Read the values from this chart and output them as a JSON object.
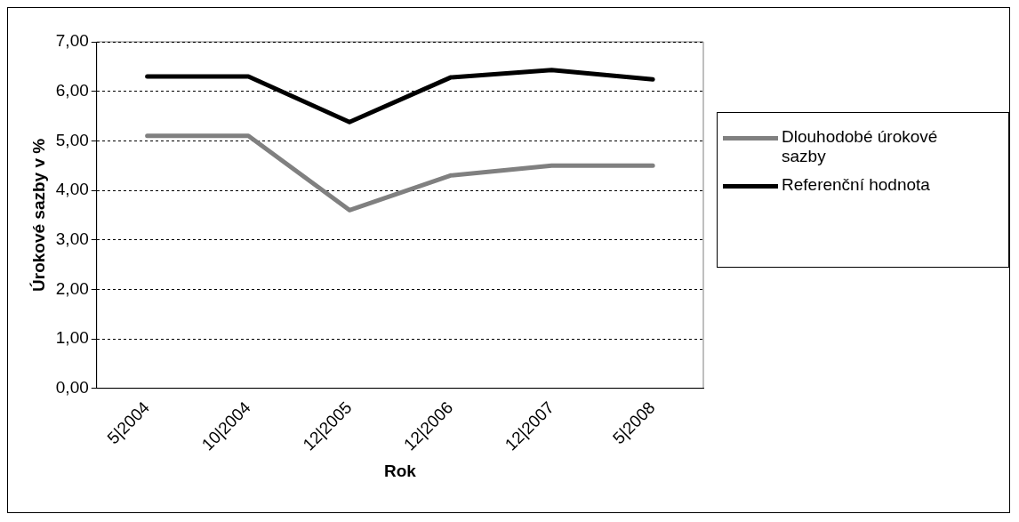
{
  "chart_data": {
    "type": "line",
    "xlabel": "Rok",
    "ylabel": "Úrokové sazby v %",
    "categories": [
      "5|2004",
      "10|2004",
      "12|2005",
      "12|2006",
      "12|2007",
      "5|2008"
    ],
    "series": [
      {
        "name": "Dlouhodobé úrokové sazby",
        "color": "#808080",
        "values": [
          5.1,
          5.1,
          3.6,
          4.3,
          4.5,
          4.5
        ]
      },
      {
        "name": "Referenční hodnota",
        "color": "#000000",
        "values": [
          6.3,
          6.3,
          5.38,
          6.28,
          6.43,
          6.24
        ]
      }
    ],
    "ylim": [
      0,
      7
    ],
    "yticks": [
      {
        "value": 0,
        "label": "0,00"
      },
      {
        "value": 1,
        "label": "1,00"
      },
      {
        "value": 2,
        "label": "2,00"
      },
      {
        "value": 3,
        "label": "3,00"
      },
      {
        "value": 4,
        "label": "4,00"
      },
      {
        "value": 5,
        "label": "5,00"
      },
      {
        "value": 6,
        "label": "6,00"
      },
      {
        "value": 7,
        "label": "7,00"
      }
    ],
    "grid": "y",
    "legend": "right",
    "marker": "none",
    "line_style": "solid"
  }
}
